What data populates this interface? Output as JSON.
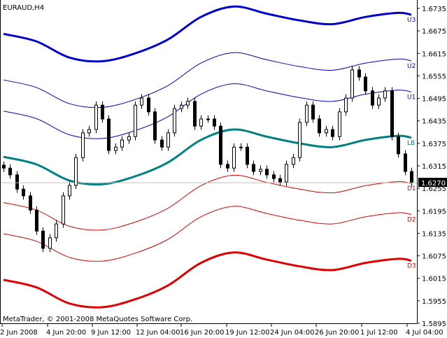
{
  "window": {
    "symbol_title": "EURAUD,H4",
    "copyright": "MetaTrader, © 2001-2008 MetaQuotes Software Corp."
  },
  "colors": {
    "upper": "#0000CC",
    "middle": "#008080",
    "lower": "#E00000",
    "candle": "#000000",
    "price_line": "#C0C0C0"
  },
  "chart_data": {
    "type": "candlestick",
    "title": "EURAUD,H4",
    "ylim": [
      1.5895,
      1.6735
    ],
    "yticks": [
      "1.6735",
      "1.6675",
      "1.6615",
      "1.6555",
      "1.6495",
      "1.6435",
      "1.6375",
      "1.6315",
      "1.6255",
      "1.6195",
      "1.6135",
      "1.6075",
      "1.6015",
      "1.5955",
      "1.5895"
    ],
    "xticks": [
      "2 Jun 2008",
      "4 Jun 20:00",
      "9 Jun 12:00",
      "12 Jun 04:00",
      "16 Jun 20:00",
      "19 Jun 12:00",
      "24 Jun 04:00",
      "26 Jun 20:00",
      "1 Jul 12:00",
      "4 Jul 04:00"
    ],
    "current_price": "1.6270",
    "grid": false,
    "close": [
      1.6309,
      1.6291,
      1.6253,
      1.6235,
      1.6197,
      1.6141,
      1.6095,
      1.6123,
      1.616,
      1.6235,
      1.6263,
      1.6337,
      1.6403,
      1.6412,
      1.6477,
      1.644,
      1.6356,
      1.6365,
      1.6384,
      1.6393,
      1.6477,
      1.6496,
      1.6459,
      1.6384,
      1.6365,
      1.6403,
      1.6468,
      1.6477,
      1.6487,
      1.6421,
      1.644,
      1.644,
      1.6421,
      1.6319,
      1.6309,
      1.6365,
      1.6365,
      1.6319,
      1.63,
      1.6306,
      1.6291,
      1.6281,
      1.6272,
      1.6319,
      1.6337,
      1.6431,
      1.6477,
      1.644,
      1.6403,
      1.6412,
      1.6393,
      1.6459,
      1.6496,
      1.6571,
      1.6552,
      1.6515,
      1.6477,
      1.6496,
      1.6515,
      1.6393,
      1.6347,
      1.63,
      1.627
    ],
    "band_sample_index": [
      0,
      5,
      10,
      15,
      20,
      25,
      30,
      35,
      40,
      45,
      50,
      55,
      60,
      62
    ],
    "series": [
      {
        "name": "U3",
        "values": [
          1.6667,
          1.6647,
          1.6604,
          1.6594,
          1.6615,
          1.6652,
          1.6712,
          1.674,
          1.6721,
          1.6703,
          1.6693,
          1.6712,
          1.6723,
          1.6718
        ]
      },
      {
        "name": "U2",
        "values": [
          1.6544,
          1.6524,
          1.6481,
          1.6471,
          1.6492,
          1.6529,
          1.6589,
          1.6617,
          1.6598,
          1.658,
          1.657,
          1.6589,
          1.66,
          1.6595
        ]
      },
      {
        "name": "U1",
        "values": [
          1.6461,
          1.6441,
          1.6398,
          1.6388,
          1.6409,
          1.6446,
          1.6506,
          1.6534,
          1.6515,
          1.6497,
          1.6487,
          1.6506,
          1.6517,
          1.6512
        ]
      },
      {
        "name": "LB",
        "values": [
          1.6339,
          1.6319,
          1.6276,
          1.6266,
          1.6287,
          1.6324,
          1.6384,
          1.6412,
          1.6393,
          1.6375,
          1.6365,
          1.6384,
          1.6395,
          1.639
        ]
      },
      {
        "name": "D1",
        "values": [
          1.6217,
          1.6197,
          1.6154,
          1.6144,
          1.6165,
          1.6202,
          1.6262,
          1.629,
          1.6271,
          1.6253,
          1.6243,
          1.6262,
          1.6273,
          1.6268
        ]
      },
      {
        "name": "D2",
        "values": [
          1.6134,
          1.6114,
          1.6071,
          1.6061,
          1.6082,
          1.6119,
          1.6179,
          1.6207,
          1.6188,
          1.617,
          1.616,
          1.6179,
          1.619,
          1.6185
        ]
      },
      {
        "name": "D3",
        "values": [
          1.6011,
          1.5991,
          1.5948,
          1.5938,
          1.5959,
          1.5996,
          1.6056,
          1.6084,
          1.6065,
          1.6047,
          1.6037,
          1.6056,
          1.6067,
          1.6062
        ]
      }
    ]
  }
}
